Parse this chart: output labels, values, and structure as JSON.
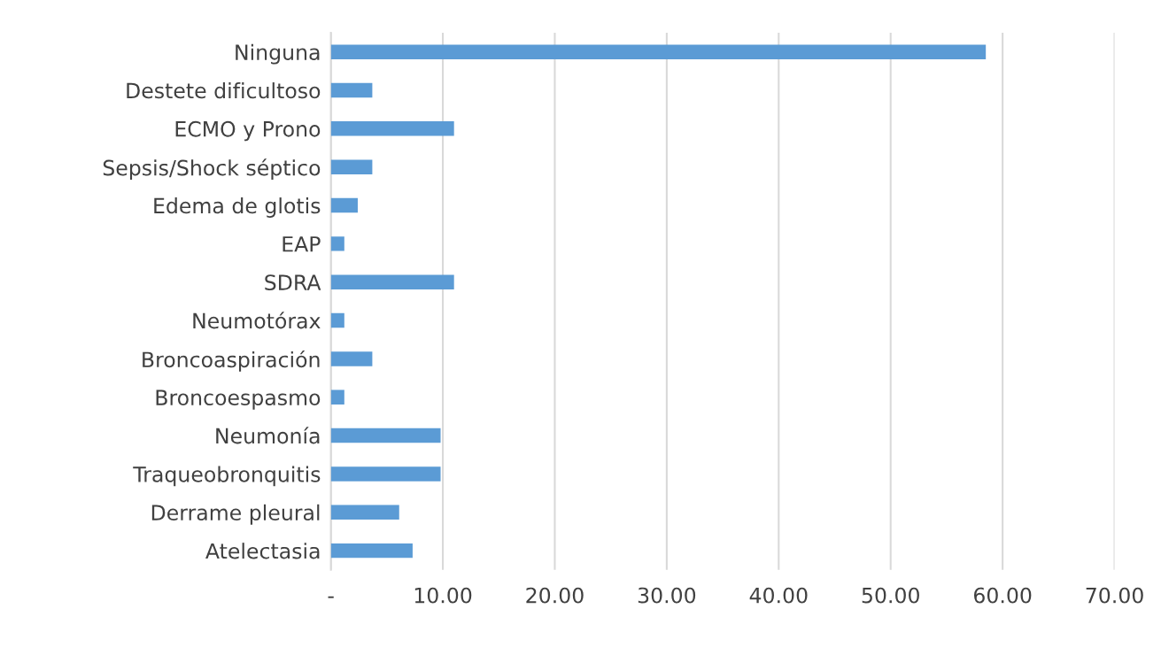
{
  "chart_data": {
    "type": "bar",
    "orientation": "horizontal",
    "categories": [
      "Ninguna",
      "Destete dificultoso",
      "ECMO y Prono",
      "Sepsis/Shock séptico",
      "Edema de glotis",
      "EAP",
      "SDRA",
      "Neumotórax",
      "Broncoaspiración",
      "Broncoespasmo",
      "Neumonía",
      "Traqueobronquitis",
      "Derrame pleural",
      "Atelectasia"
    ],
    "values": [
      58.5,
      3.7,
      11.0,
      3.7,
      2.4,
      1.2,
      11.0,
      1.2,
      3.7,
      1.2,
      9.8,
      9.8,
      6.1,
      7.3
    ],
    "color": "#5b9bd5",
    "xlim": [
      0,
      70
    ],
    "xticks": [
      {
        "value": 0,
        "label": "-"
      },
      {
        "value": 10,
        "label": "10.00"
      },
      {
        "value": 20,
        "label": "20.00"
      },
      {
        "value": 30,
        "label": "30.00"
      },
      {
        "value": 40,
        "label": "40.00"
      },
      {
        "value": 50,
        "label": "50.00"
      },
      {
        "value": 60,
        "label": "60.00"
      },
      {
        "value": 70,
        "label": "70.00"
      }
    ],
    "grid": "x",
    "legend": false
  }
}
